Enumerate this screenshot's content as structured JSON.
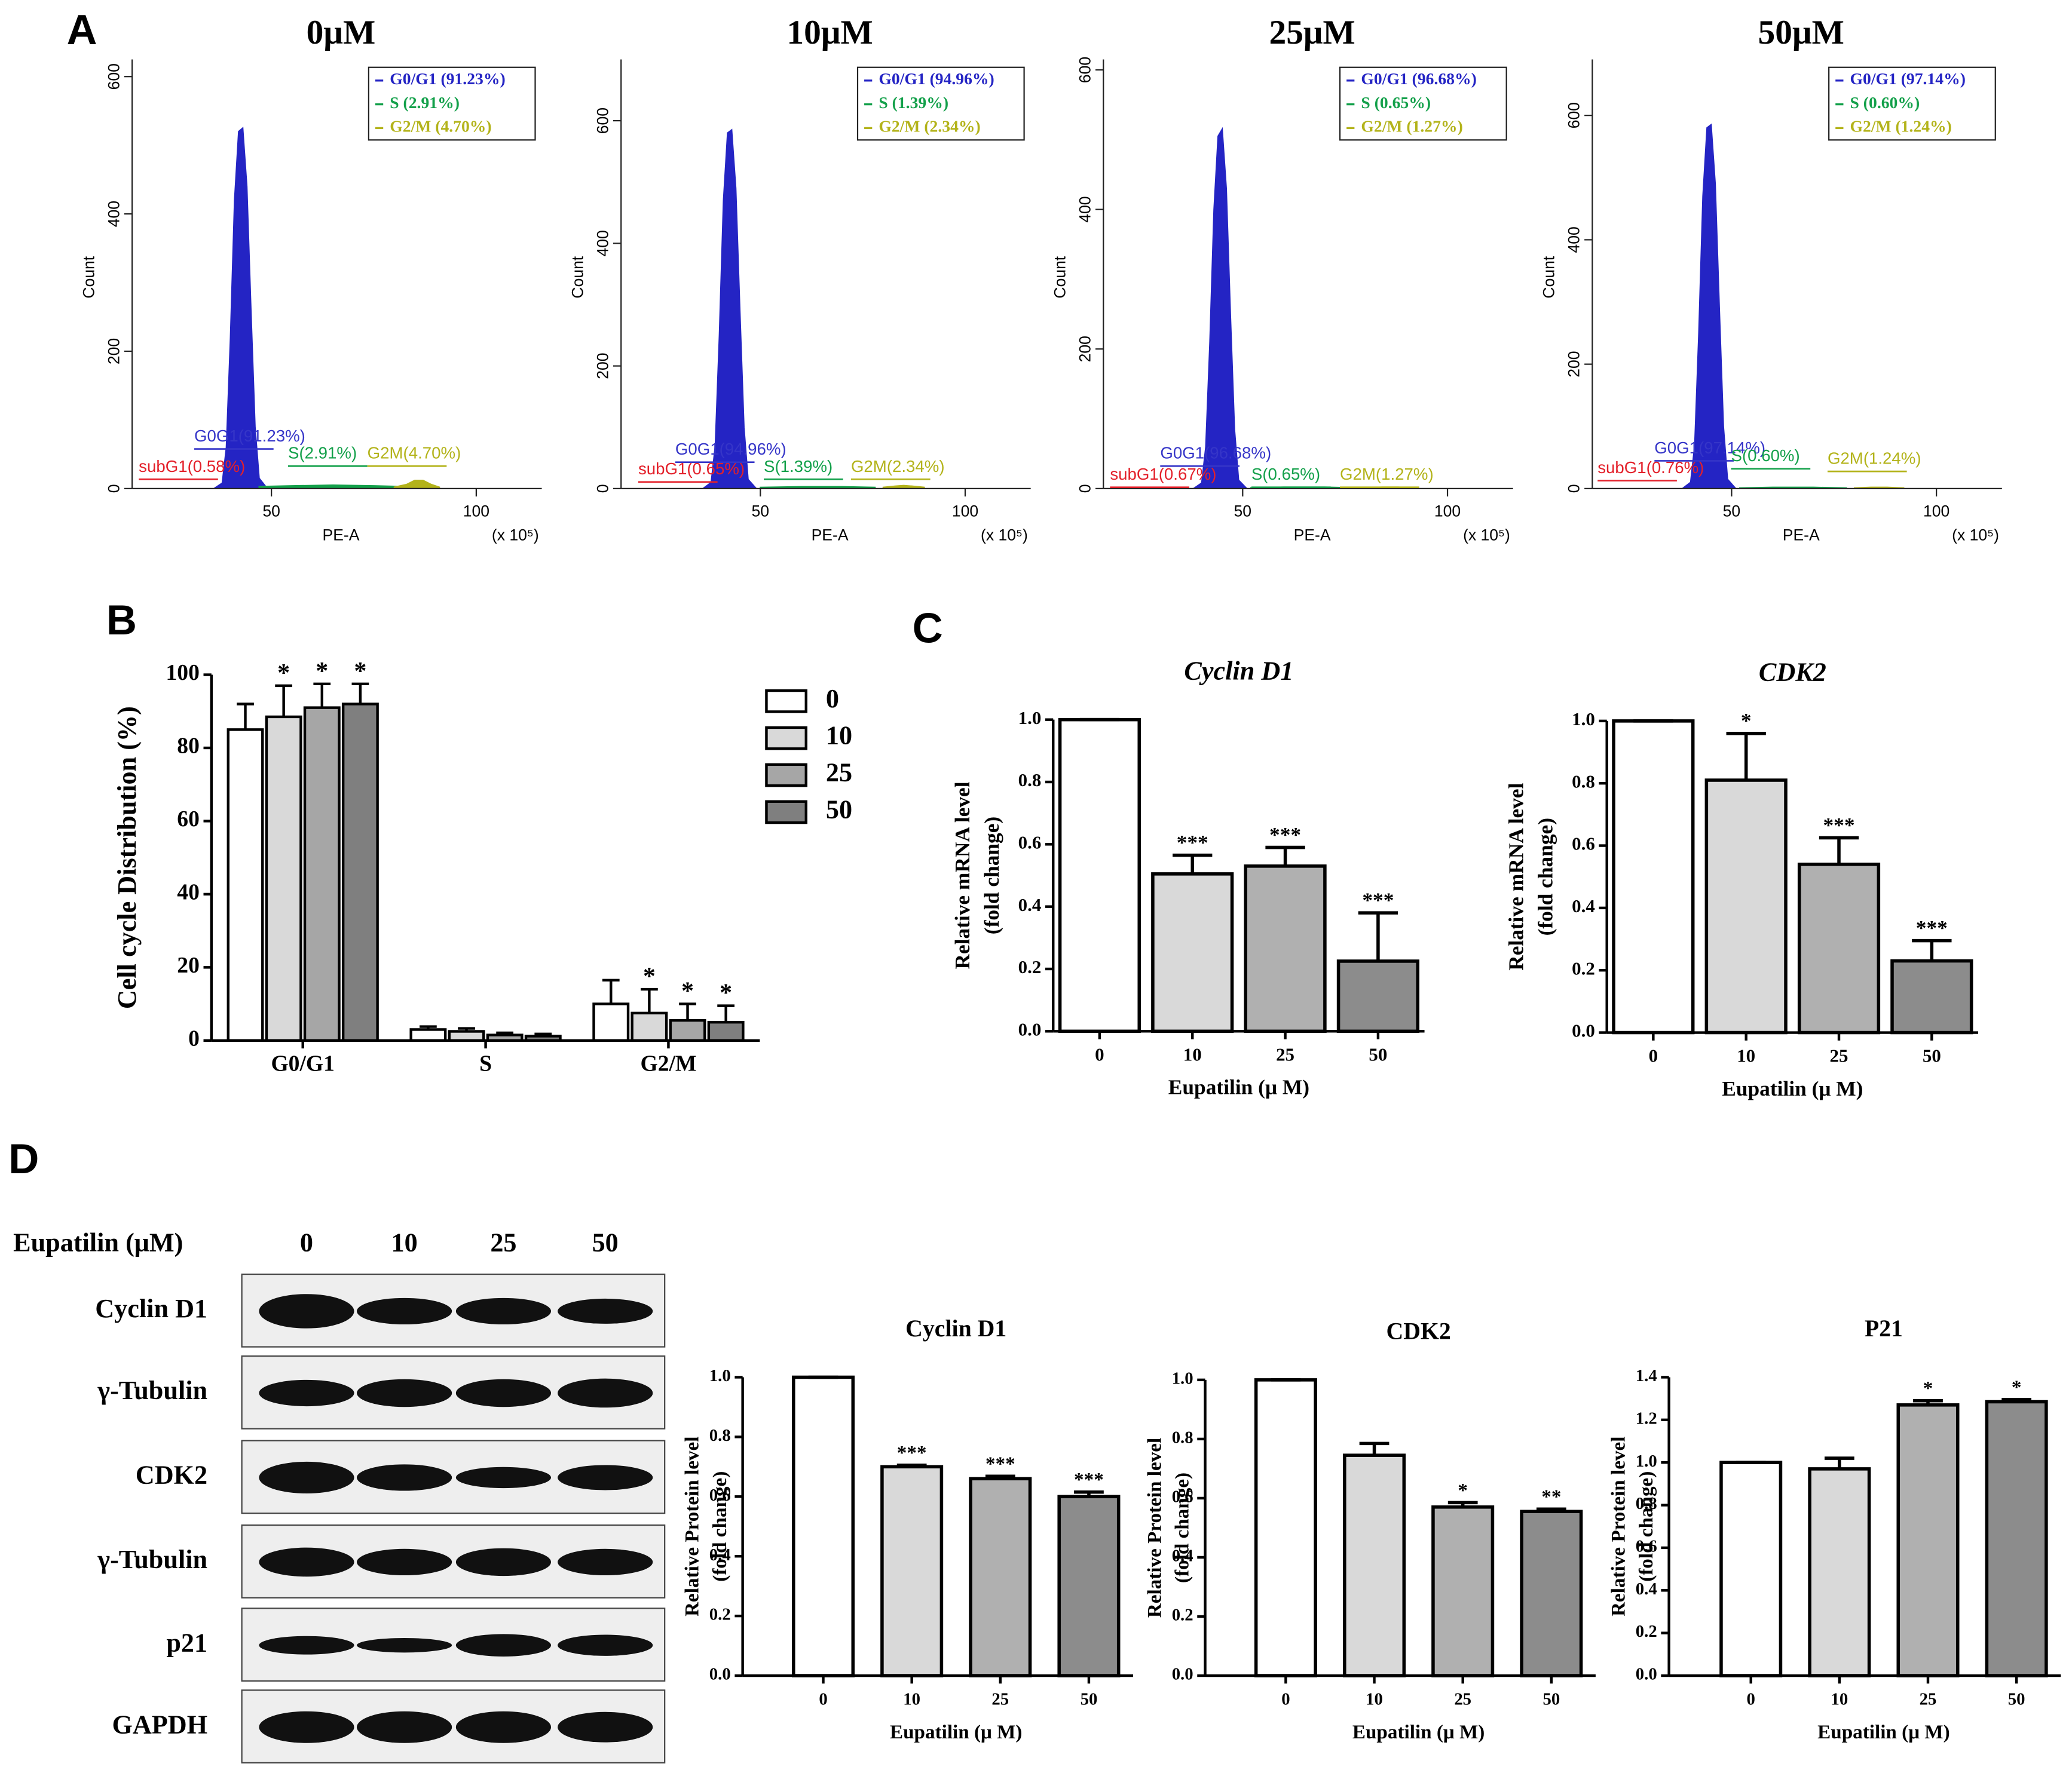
{
  "panels": [
    "A",
    "B",
    "C",
    "D"
  ],
  "chart_data": [
    {
      "type": "area",
      "title": "0μM",
      "xlabel": "PE-A",
      "x_unit": "(x 10⁵)",
      "ylabel": "Count",
      "xlim": [
        16,
        116
      ],
      "ylim": [
        0,
        625
      ],
      "xticks": [
        50,
        100
      ],
      "yticks": [
        0,
        200,
        400,
        600
      ],
      "series": [
        {
          "name": "G0/G1 (91.23%)",
          "color": "#2424c4",
          "x": [
            36,
            38,
            39,
            40,
            41,
            42,
            43,
            44,
            45,
            46,
            47,
            49
          ],
          "values": [
            0,
            8,
            60,
            220,
            420,
            520,
            525,
            440,
            260,
            90,
            15,
            0
          ]
        },
        {
          "name": "S (2.91%)",
          "color": "#13a04a",
          "x": [
            47,
            55,
            65,
            75,
            82
          ],
          "values": [
            3,
            4,
            5,
            4,
            3
          ]
        },
        {
          "name": "G2/M (4.70%)",
          "color": "#b3b31a",
          "x": [
            80,
            83,
            85,
            87,
            89,
            91
          ],
          "values": [
            2,
            6,
            12,
            12,
            6,
            2
          ]
        }
      ],
      "annotations": [
        {
          "text": "subG1(0.58%)",
          "color": "#e3202a"
        },
        {
          "text": "G0G1(91.23%)",
          "color": "#3535c8"
        },
        {
          "text": "S(2.91%)",
          "color": "#13a04a"
        },
        {
          "text": "G2M(4.70%)",
          "color": "#b3b31a"
        }
      ]
    },
    {
      "type": "area",
      "title": "10μM",
      "xlabel": "PE-A",
      "x_unit": "(x 10⁵)",
      "ylabel": "Count",
      "xlim": [
        16,
        116
      ],
      "ylim": [
        0,
        700
      ],
      "xticks": [
        50,
        100
      ],
      "yticks": [
        0,
        200,
        400,
        600
      ],
      "series": [
        {
          "name": "G0/G1 (94.96%)",
          "color": "#2424c4",
          "x": [
            36,
            38,
            39,
            40,
            41,
            42,
            43,
            44,
            45,
            46,
            47,
            49
          ],
          "values": [
            0,
            10,
            70,
            250,
            470,
            580,
            585,
            490,
            290,
            100,
            15,
            0
          ]
        },
        {
          "name": "S (1.39%)",
          "color": "#13a04a",
          "x": [
            50,
            60,
            70,
            78
          ],
          "values": [
            2,
            3,
            3,
            2
          ]
        },
        {
          "name": "G2/M (2.34%)",
          "color": "#b3b31a",
          "x": [
            80,
            83,
            85,
            87,
            90
          ],
          "values": [
            2,
            4,
            5,
            4,
            2
          ]
        }
      ],
      "annotations": [
        {
          "text": "subG1(0.65%)",
          "color": "#e3202a"
        },
        {
          "text": "G0G1(94.96%)",
          "color": "#3535c8"
        },
        {
          "text": "S(1.39%)",
          "color": "#13a04a"
        },
        {
          "text": "G2M(2.34%)",
          "color": "#b3b31a"
        }
      ]
    },
    {
      "type": "area",
      "title": "25μM",
      "xlabel": "PE-A",
      "x_unit": "(x 10⁵)",
      "ylabel": "Count",
      "xlim": [
        16,
        116
      ],
      "ylim": [
        0,
        615
      ],
      "xticks": [
        50,
        100
      ],
      "yticks": [
        0,
        200,
        400,
        600
      ],
      "series": [
        {
          "name": "G0/G1 (96.68%)",
          "color": "#2424c4",
          "x": [
            38,
            40,
            41,
            42,
            43,
            44,
            45,
            46,
            47,
            48,
            49,
            51
          ],
          "values": [
            0,
            8,
            60,
            210,
            400,
            505,
            515,
            430,
            250,
            85,
            12,
            0
          ]
        },
        {
          "name": "S (0.65%)",
          "color": "#13a04a",
          "x": [
            52,
            60,
            70,
            78
          ],
          "values": [
            1,
            2,
            2,
            1
          ]
        },
        {
          "name": "G2/M (1.27%)",
          "color": "#b3b31a",
          "x": [
            80,
            84,
            88,
            92
          ],
          "values": [
            1,
            2,
            2,
            1
          ]
        }
      ],
      "annotations": [
        {
          "text": "subG1(0.67%)",
          "color": "#e3202a"
        },
        {
          "text": "G0G1(96.68%)",
          "color": "#3535c8"
        },
        {
          "text": "S(0.65%)",
          "color": "#13a04a"
        },
        {
          "text": "G2M(1.27%)",
          "color": "#b3b31a"
        }
      ]
    },
    {
      "type": "area",
      "title": "50μM",
      "xlabel": "PE-A",
      "x_unit": "(x 10⁵)",
      "ylabel": "Count",
      "xlim": [
        16,
        116
      ],
      "ylim": [
        0,
        690
      ],
      "xticks": [
        50,
        100
      ],
      "yticks": [
        0,
        200,
        400,
        600
      ],
      "series": [
        {
          "name": "G0/G1 (97.14%)",
          "color": "#2424c4",
          "x": [
            38,
            40,
            41,
            42,
            43,
            44,
            45,
            46,
            47,
            48,
            49,
            51
          ],
          "values": [
            0,
            10,
            70,
            250,
            470,
            580,
            585,
            490,
            290,
            100,
            15,
            0
          ]
        },
        {
          "name": "S (0.60%)",
          "color": "#13a04a",
          "x": [
            52,
            60,
            70,
            78
          ],
          "values": [
            1,
            2,
            2,
            1
          ]
        },
        {
          "name": "G2/M (1.24%)",
          "color": "#b3b31a",
          "x": [
            80,
            84,
            88,
            92
          ],
          "values": [
            1,
            2,
            2,
            1
          ]
        }
      ],
      "annotations": [
        {
          "text": "subG1(0.76%)",
          "color": "#e3202a"
        },
        {
          "text": "G0G1(97.14%)",
          "color": "#3535c8"
        },
        {
          "text": "S(0.60%)",
          "color": "#13a04a"
        },
        {
          "text": "G2M(1.24%)",
          "color": "#b3b31a"
        }
      ]
    },
    {
      "type": "bar",
      "ylabel": [
        "Cell cycle Distribution (%)"
      ],
      "categories": [
        "G0/G1",
        "S",
        "G2/M"
      ],
      "ylim": [
        0,
        100
      ],
      "yticks": [
        0,
        20,
        40,
        60,
        80,
        100
      ],
      "series": [
        {
          "name": "0",
          "color": "#ffffff",
          "values": [
            85,
            3,
            10
          ],
          "errors": [
            7,
            0.8,
            6.5
          ]
        },
        {
          "name": "10",
          "color": "#d9d9d9",
          "values": [
            88.5,
            2.5,
            7.5
          ],
          "errors": [
            8.5,
            0.8,
            6.5
          ],
          "sig": [
            "*",
            null,
            "*"
          ]
        },
        {
          "name": "25",
          "color": "#a6a6a6",
          "values": [
            91,
            1.5,
            5.5
          ],
          "errors": [
            6.5,
            0.6,
            4.5
          ],
          "sig": [
            "*",
            null,
            "*"
          ]
        },
        {
          "name": "50",
          "color": "#7f7f7f",
          "values": [
            92,
            1.2,
            5
          ],
          "errors": [
            5.5,
            0.6,
            4.5
          ],
          "sig": [
            "*",
            null,
            "*"
          ]
        }
      ]
    },
    {
      "type": "bar",
      "title": "Cyclin D1",
      "italic": true,
      "xlabel": "Eupatilin (μ M)",
      "ylabel": [
        "Relative mRNA level",
        "(fold change)"
      ],
      "categories": [
        "0",
        "10",
        "25",
        "50"
      ],
      "values": [
        1,
        0.505,
        0.53,
        0.225
      ],
      "errors": [
        0,
        0.06,
        0.06,
        0.155
      ],
      "sig": [
        null,
        "***",
        "***",
        "***"
      ],
      "colors": [
        "#ffffff",
        "#d9d9d9",
        "#b0b0b0",
        "#8c8c8c"
      ],
      "ylim": [
        0,
        1
      ],
      "yticks": [
        {
          "value": 0,
          "label": "0.0"
        },
        0.2,
        0.4,
        0.6,
        0.8,
        {
          "value": 1,
          "label": "1.0"
        }
      ]
    },
    {
      "type": "bar",
      "title": "CDK2",
      "italic": true,
      "xlabel": "Eupatilin (μ M)",
      "ylabel": [
        "Relative mRNA level",
        "(fold change)"
      ],
      "categories": [
        "0",
        "10",
        "25",
        "50"
      ],
      "values": [
        1,
        0.81,
        0.54,
        0.23
      ],
      "errors": [
        0,
        0.15,
        0.085,
        0.065
      ],
      "sig": [
        null,
        "*",
        "***",
        "***"
      ],
      "colors": [
        "#ffffff",
        "#d9d9d9",
        "#b0b0b0",
        "#8c8c8c"
      ],
      "ylim": [
        0,
        1
      ],
      "yticks": [
        {
          "value": 0,
          "label": "0.0"
        },
        0.2,
        0.4,
        0.6,
        0.8,
        {
          "value": 1,
          "label": "1.0"
        }
      ]
    },
    {
      "type": "bar",
      "title": "Cyclin D1",
      "xlabel": "Eupatilin (μ M)",
      "ylabel": [
        "Relative Protein level",
        "(fold change)"
      ],
      "categories": [
        "0",
        "10",
        "25",
        "50"
      ],
      "values": [
        1,
        0.7,
        0.66,
        0.6
      ],
      "errors": [
        0,
        0.005,
        0.008,
        0.015
      ],
      "sig": [
        null,
        "***",
        "***",
        "***"
      ],
      "colors": [
        "#ffffff",
        "#d9d9d9",
        "#b0b0b0",
        "#8c8c8c"
      ],
      "ylim": [
        0,
        1
      ],
      "yticks": [
        {
          "value": 0,
          "label": "0.0"
        },
        0.2,
        0.4,
        0.6,
        0.8,
        {
          "value": 1,
          "label": "1.0"
        }
      ]
    },
    {
      "type": "bar",
      "title": "CDK2",
      "xlabel": "Eupatilin (μ M)",
      "ylabel": [
        "Relative Protein level",
        "(fold change)"
      ],
      "categories": [
        "0",
        "10",
        "25",
        "50"
      ],
      "values": [
        1,
        0.745,
        0.57,
        0.555
      ],
      "errors": [
        0,
        0.04,
        0.015,
        0.008
      ],
      "sig": [
        null,
        null,
        "*",
        "**"
      ],
      "colors": [
        "#ffffff",
        "#d9d9d9",
        "#b0b0b0",
        "#8c8c8c"
      ],
      "ylim": [
        0,
        1
      ],
      "yticks": [
        {
          "value": 0,
          "label": "0.0"
        },
        0.2,
        0.4,
        0.6,
        0.8,
        {
          "value": 1,
          "label": "1.0"
        }
      ]
    },
    {
      "type": "bar",
      "title": "P21",
      "xlabel": "Eupatilin (μ M)",
      "ylabel": [
        "Relative Protein level",
        "(fold change)"
      ],
      "categories": [
        "0",
        "10",
        "25",
        "50"
      ],
      "values": [
        1,
        0.97,
        1.27,
        1.285
      ],
      "errors": [
        0,
        0.05,
        0.02,
        0.01
      ],
      "sig": [
        null,
        null,
        "*",
        "*"
      ],
      "colors": [
        "#ffffff",
        "#d9d9d9",
        "#b0b0b0",
        "#8c8c8c"
      ],
      "ylim": [
        0,
        1.4
      ],
      "yticks": [
        {
          "value": 0,
          "label": "0.0"
        },
        0.2,
        0.4,
        0.6,
        0.8,
        {
          "value": 1,
          "label": "1.0"
        },
        1.2,
        1.4
      ]
    }
  ],
  "blot": {
    "header": "Eupatilin (μM)",
    "lanes": [
      "0",
      "10",
      "25",
      "50"
    ],
    "rows": [
      "Cyclin D1",
      "γ-Tubulin",
      "CDK2",
      "γ-Tubulin",
      "p21",
      "GAPDH"
    ]
  }
}
